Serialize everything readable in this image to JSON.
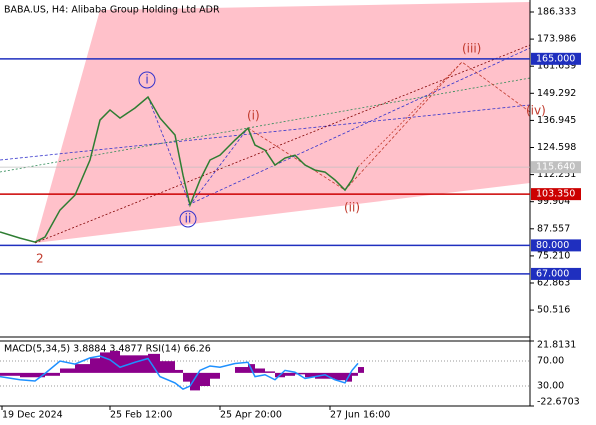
{
  "chart_data": {
    "type": "line",
    "title": "BABA.US, H4:  Alibaba Group Holding Ltd ADR",
    "x": [
      0,
      20,
      35,
      45,
      60,
      75,
      90,
      100,
      110,
      120,
      135,
      148,
      160,
      175,
      183,
      190,
      200,
      210,
      220,
      235,
      248,
      255,
      265,
      275,
      285,
      295,
      305,
      315,
      325,
      335,
      345,
      352,
      358
    ],
    "series": [
      {
        "name": "BABA.US",
        "color": "#2e7d32",
        "values": [
          86.1,
          83.3,
          81.5,
          83.8,
          96.1,
          102.9,
          118.9,
          137.1,
          141.7,
          138.0,
          142.6,
          147.6,
          138.0,
          130.3,
          112.0,
          98.4,
          109.8,
          118.9,
          121.1,
          128.0,
          133.4,
          125.7,
          123.4,
          116.6,
          119.8,
          121.1,
          116.6,
          114.3,
          113.4,
          109.8,
          105.2,
          109.8,
          115.64
        ]
      }
    ],
    "xlim": [
      0,
      530
    ],
    "xticks": [
      {
        "value": 2,
        "label": "19 Dec 2024"
      },
      {
        "value": 110,
        "label": "25 Feb 12:00"
      },
      {
        "value": 220,
        "label": "25 Apr 20:00"
      },
      {
        "value": 330,
        "label": "27 Jun 16:00"
      }
    ],
    "ylim": [
      38.26,
      191.8
    ],
    "yticks": [
      186.333,
      173.986,
      161.639,
      149.292,
      136.945,
      124.598,
      112.251,
      99.904,
      87.557,
      {
        "value": 75.21,
        "label": "75.210"
      },
      62.863,
      50.516
    ],
    "levels": [
      {
        "value": 165,
        "label": "165.000",
        "color": "#1f2fbf"
      },
      {
        "value": 103.35,
        "label": "103.350",
        "color": "#cc0000"
      },
      {
        "value": 80,
        "label": "80.000",
        "color": "#1f2fbf"
      },
      {
        "value": 67,
        "label": "67.000",
        "color": "#1f2fbf"
      }
    ],
    "current_price": {
      "value": 115.64,
      "label": "115.640",
      "color": "#c0c0c0"
    },
    "annotations": [
      {
        "text": "i",
        "color": "#3333cc"
      },
      {
        "text": "ii",
        "color": "#3333cc"
      },
      {
        "text": "(i)",
        "color": "#c0392b"
      },
      {
        "text": "(ii)",
        "color": "#c0392b"
      },
      {
        "text": "(iii)",
        "color": "#c0392b"
      },
      {
        "text": "(iv)",
        "color": "#c0392b"
      },
      {
        "text": "2",
        "color": "#c0392b"
      }
    ],
    "indicator": {
      "label": "MACD(5,34,5) 3.8884 3.4877 RSI(14) 66.26",
      "macd_color": "#8b008b",
      "rsi_color": "#1e90ff",
      "macd_lim": [
        -22.6703,
        21.8131
      ],
      "macd_ticks": [
        21.8131,
        -22.6703
      ],
      "rsi_lim": [
        -2,
        102
      ],
      "rsi_ticks": [
        {
          "value": 70,
          "label": "70.00"
        },
        {
          "value": 30,
          "label": "30.00"
        }
      ],
      "macd": [
        -2,
        -3,
        -3,
        -2,
        3,
        6,
        10,
        14,
        15,
        12,
        12,
        13,
        8,
        2,
        -6,
        -12,
        -9,
        -4,
        0,
        4,
        6,
        3,
        1,
        -3,
        -2,
        -1,
        -3,
        -4,
        -4,
        -5,
        -6,
        -2,
        4
      ],
      "rsi": [
        45,
        40,
        38,
        50,
        70,
        65,
        75,
        78,
        72,
        60,
        68,
        74,
        45,
        35,
        25,
        30,
        55,
        62,
        60,
        66,
        68,
        45,
        48,
        40,
        55,
        52,
        42,
        45,
        48,
        40,
        35,
        55,
        66.26
      ]
    }
  }
}
